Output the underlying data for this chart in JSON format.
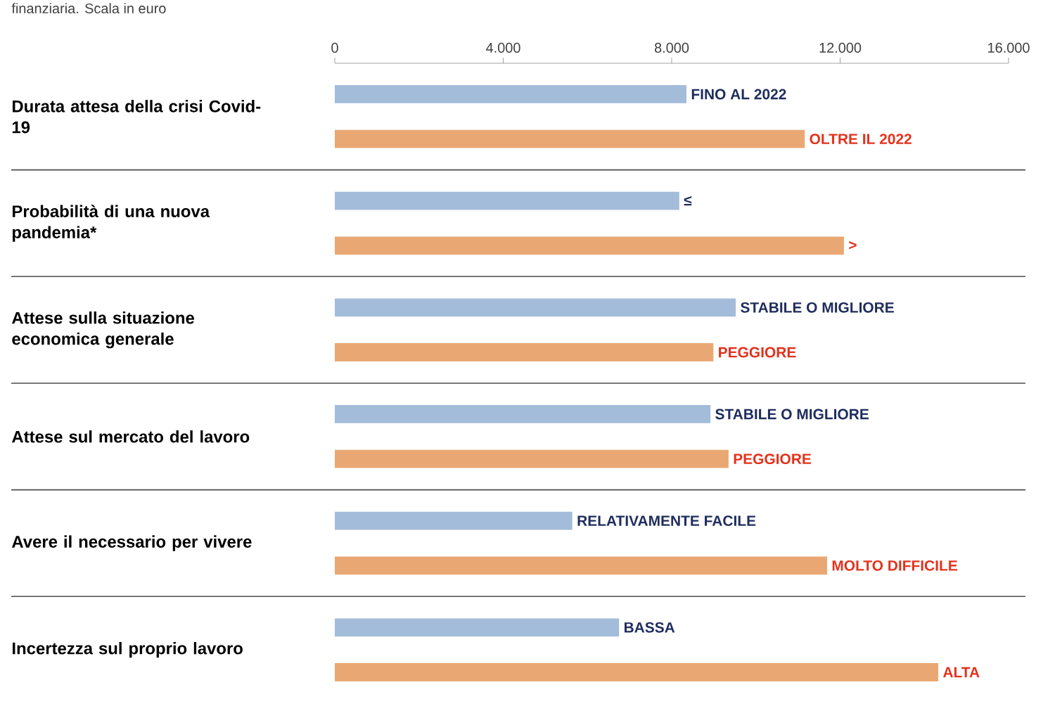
{
  "chart_data": {
    "type": "bar",
    "orientation": "horizontal",
    "subtitle": "finanziaria. Scala in euro",
    "categories": [
      "Durata attesa della crisi Covid-19",
      "Probabilità di una nuova pandemia*",
      "Attese sulla situazione economica generale",
      "Attese sul mercato del lavoro",
      "Avere il necessario per vivere",
      "Incertezza sul proprio lavoro"
    ],
    "xlim": [
      0,
      16000
    ],
    "xticks": [
      0,
      {
        "value": 4000,
        "label": "4.000"
      },
      {
        "value": 8000,
        "label": "8.000"
      },
      {
        "value": 12000,
        "label": "12.000"
      },
      {
        "value": 16000,
        "label": "16.000"
      }
    ],
    "series": [
      {
        "color": "#a3bcd9",
        "values": [
          8350,
          8180,
          9520,
          8920,
          5640,
          6750
        ],
        "value_labels": [
          "FINO AL 2022",
          "≤",
          "STABILE O MIGLIORE",
          "STABILE O MIGLIORE",
          "RELATIVAMENTE FACILE",
          "BASSA"
        ]
      },
      {
        "color": "#e9a873",
        "values": [
          11160,
          12090,
          8990,
          9350,
          11690,
          14330
        ],
        "value_labels": [
          "OLTRE IL 2022",
          ">",
          "PEGGIORE",
          "PEGGIORE",
          "MOLTO DIFFICILE",
          "ALTA"
        ]
      }
    ]
  }
}
